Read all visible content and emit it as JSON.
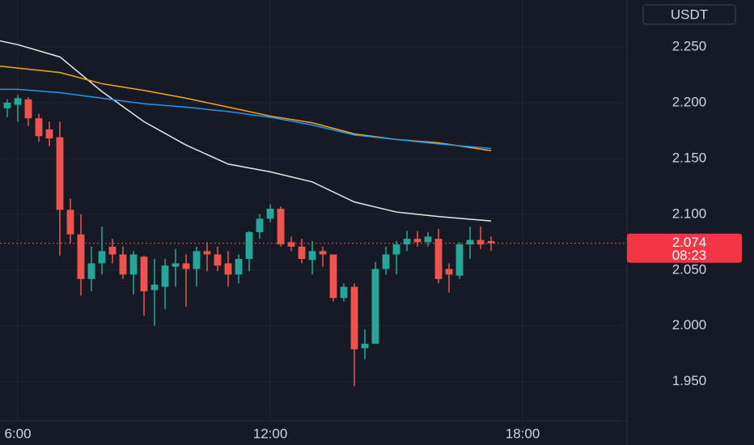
{
  "chart_data": {
    "type": "candlestick",
    "currency": "USDT",
    "x": [
      5.75,
      6,
      6.25,
      6.5,
      6.75,
      7,
      7.25,
      7.5,
      7.75,
      8,
      8.25,
      8.5,
      8.75,
      9,
      9.25,
      9.5,
      9.75,
      10,
      10.25,
      10.5,
      10.75,
      11,
      11.25,
      11.5,
      11.75,
      12,
      12.25,
      12.5,
      12.75,
      13,
      13.25,
      13.5,
      13.75,
      14,
      14.25,
      14.5,
      14.75,
      15,
      15.25,
      15.5,
      15.75,
      16,
      16.25,
      16.5,
      16.75,
      17,
      17.25
    ],
    "open": [
      2.195,
      2.198,
      2.203,
      2.186,
      2.176,
      2.169,
      2.104,
      2.082,
      2.042,
      2.056,
      2.071,
      2.064,
      2.046,
      2.062,
      2.032,
      2.035,
      2.053,
      2.056,
      2.051,
      2.067,
      2.064,
      2.056,
      2.046,
      2.06,
      2.084,
      2.096,
      2.105,
      2.075,
      2.071,
      2.059,
      2.067,
      2.064,
      2.025,
      2.035,
      1.98,
      1.984,
      2.051,
      2.064,
      2.073,
      2.078,
      2.075,
      2.078,
      2.051,
      2.045,
      2.073,
      2.077,
      2.076
    ],
    "high": [
      2.203,
      2.207,
      2.205,
      2.19,
      2.183,
      2.183,
      2.114,
      2.1,
      2.071,
      2.089,
      2.078,
      2.071,
      2.067,
      2.063,
      2.06,
      2.06,
      2.069,
      2.064,
      2.071,
      2.075,
      2.071,
      2.067,
      2.064,
      2.085,
      2.1,
      2.109,
      2.107,
      2.08,
      2.078,
      2.076,
      2.071,
      2.064,
      2.038,
      2.038,
      1.997,
      2.057,
      2.071,
      2.076,
      2.085,
      2.085,
      2.084,
      2.087,
      2.056,
      2.075,
      2.089,
      2.089,
      2.08
    ],
    "low": [
      2.187,
      2.183,
      2.179,
      2.165,
      2.161,
      2.063,
      2.074,
      2.027,
      2.031,
      2.046,
      2.056,
      2.042,
      2.028,
      2.009,
      2.0,
      2.015,
      2.035,
      2.017,
      2.035,
      2.049,
      2.049,
      2.035,
      2.038,
      2.049,
      2.078,
      2.093,
      2.071,
      2.067,
      2.056,
      2.046,
      2.053,
      2.022,
      2.022,
      1.946,
      1.97,
      1.984,
      2.046,
      2.046,
      2.067,
      2.071,
      2.071,
      2.038,
      2.03,
      2.042,
      2.06,
      2.069,
      2.067
    ],
    "close": [
      2.2,
      2.204,
      2.186,
      2.17,
      2.168,
      2.104,
      2.082,
      2.042,
      2.056,
      2.067,
      2.064,
      2.046,
      2.064,
      2.031,
      2.037,
      2.054,
      2.056,
      2.051,
      2.067,
      2.064,
      2.054,
      2.046,
      2.06,
      2.084,
      2.096,
      2.105,
      2.073,
      2.071,
      2.06,
      2.067,
      2.064,
      2.025,
      2.035,
      1.979,
      1.984,
      2.051,
      2.064,
      2.073,
      2.078,
      2.075,
      2.08,
      2.042,
      2.046,
      2.073,
      2.077,
      2.073,
      2.074
    ],
    "up_color": "#26a69a",
    "down_color": "#ef5350",
    "lines": [
      {
        "color": "#e6e6e6",
        "x": [
          5.5,
          6,
          7,
          8,
          9,
          10,
          11,
          12,
          13,
          14,
          15,
          16,
          17.25
        ],
        "values": [
          2.256,
          2.252,
          2.241,
          2.21,
          2.183,
          2.162,
          2.145,
          2.138,
          2.129,
          2.111,
          2.102,
          2.098,
          2.094
        ]
      },
      {
        "color": "#f5a623",
        "x": [
          5.5,
          6,
          7,
          8,
          9,
          10,
          11,
          12,
          13,
          14,
          15,
          16,
          17.25
        ],
        "values": [
          2.233,
          2.231,
          2.227,
          2.217,
          2.211,
          2.204,
          2.196,
          2.188,
          2.182,
          2.172,
          2.167,
          2.164,
          2.157
        ]
      },
      {
        "color": "#2196f3",
        "x": [
          5.5,
          6,
          7,
          8,
          9,
          10,
          11,
          12,
          13,
          14,
          15,
          16,
          17.25
        ],
        "values": [
          2.212,
          2.212,
          2.209,
          2.204,
          2.199,
          2.196,
          2.192,
          2.187,
          2.18,
          2.171,
          2.167,
          2.163,
          2.159
        ]
      }
    ],
    "last_price": 2.074,
    "countdown": "08:23",
    "xlim": [
      5.577,
      20.48
    ],
    "ylim": [
      1.915,
      2.292
    ],
    "xticks": [
      {
        "value": 6,
        "label": "6:00"
      },
      {
        "value": 12,
        "label": "12:00"
      },
      {
        "value": 18,
        "label": "18:00"
      }
    ],
    "yticks": [
      {
        "value": 1.95,
        "label": "1.950"
      },
      {
        "value": 2,
        "label": "2.000"
      },
      {
        "value": 2.05,
        "label": "2.050"
      },
      {
        "value": 2.1,
        "label": "2.100"
      },
      {
        "value": 2.15,
        "label": "2.150"
      },
      {
        "value": 2.2,
        "label": "2.200"
      },
      {
        "value": 2.25,
        "label": "2.250"
      }
    ],
    "grid": true
  }
}
